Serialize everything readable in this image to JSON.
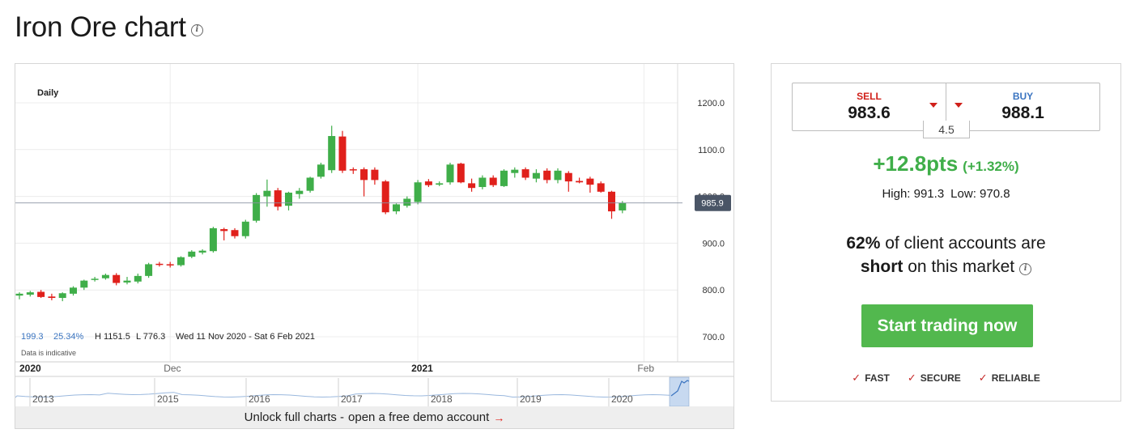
{
  "page": {
    "title": "Iron Ore chart"
  },
  "chart": {
    "period_label": "Daily",
    "current_price_tag": "985.9",
    "stats": {
      "change": "199.3",
      "change_pct": "25.34%",
      "high": "H 1151.5",
      "low": "L 776.3",
      "range": "Wed 11 Nov 2020 - Sat 6 Feb 2021"
    },
    "disclaimer": "Data is indicative",
    "unlock_text": "Unlock full charts - ",
    "unlock_link": "open a free demo account",
    "unlock_arrow": "→",
    "colors": {
      "up": "#3fae49",
      "down": "#e0201b",
      "tag": "#4a5566"
    }
  },
  "chart_data": {
    "type": "candlestick",
    "ylim": [
      700,
      1250
    ],
    "y_ticks": [
      "1200.0",
      "1100.0",
      "1000.0",
      "900.0",
      "800.0",
      "700.0"
    ],
    "y_tick_values": [
      1200,
      1100,
      1000,
      900,
      800,
      700
    ],
    "x_labels": [
      {
        "label": "2020",
        "index": 0
      },
      {
        "label": "Dec",
        "index": 14
      },
      {
        "label": "2021",
        "index": 37
      },
      {
        "label": "Feb",
        "index": 58
      }
    ],
    "navigator_years": [
      "2013",
      "2015",
      "2016",
      "2017",
      "2018",
      "2019",
      "2020"
    ],
    "candles": [
      {
        "o": 788,
        "h": 795,
        "l": 780,
        "c": 792
      },
      {
        "o": 790,
        "h": 798,
        "l": 786,
        "c": 795
      },
      {
        "o": 796,
        "h": 800,
        "l": 783,
        "c": 785
      },
      {
        "o": 786,
        "h": 792,
        "l": 778,
        "c": 783
      },
      {
        "o": 783,
        "h": 795,
        "l": 776,
        "c": 793
      },
      {
        "o": 792,
        "h": 808,
        "l": 788,
        "c": 805
      },
      {
        "o": 805,
        "h": 822,
        "l": 800,
        "c": 820
      },
      {
        "o": 823,
        "h": 828,
        "l": 818,
        "c": 824
      },
      {
        "o": 825,
        "h": 835,
        "l": 822,
        "c": 832
      },
      {
        "o": 832,
        "h": 836,
        "l": 810,
        "c": 815
      },
      {
        "o": 816,
        "h": 828,
        "l": 812,
        "c": 820
      },
      {
        "o": 818,
        "h": 835,
        "l": 814,
        "c": 830
      },
      {
        "o": 830,
        "h": 858,
        "l": 826,
        "c": 855
      },
      {
        "o": 856,
        "h": 860,
        "l": 850,
        "c": 854
      },
      {
        "o": 855,
        "h": 860,
        "l": 848,
        "c": 853
      },
      {
        "o": 853,
        "h": 872,
        "l": 850,
        "c": 870
      },
      {
        "o": 871,
        "h": 885,
        "l": 868,
        "c": 882
      },
      {
        "o": 880,
        "h": 887,
        "l": 876,
        "c": 884
      },
      {
        "o": 883,
        "h": 935,
        "l": 880,
        "c": 932
      },
      {
        "o": 930,
        "h": 933,
        "l": 906,
        "c": 926
      },
      {
        "o": 928,
        "h": 932,
        "l": 910,
        "c": 915
      },
      {
        "o": 915,
        "h": 950,
        "l": 910,
        "c": 946
      },
      {
        "o": 948,
        "h": 1007,
        "l": 944,
        "c": 1003
      },
      {
        "o": 1000,
        "h": 1036,
        "l": 978,
        "c": 1012
      },
      {
        "o": 1013,
        "h": 1018,
        "l": 970,
        "c": 978
      },
      {
        "o": 980,
        "h": 1010,
        "l": 970,
        "c": 1008
      },
      {
        "o": 1005,
        "h": 1018,
        "l": 995,
        "c": 1012
      },
      {
        "o": 1012,
        "h": 1042,
        "l": 1008,
        "c": 1040
      },
      {
        "o": 1042,
        "h": 1072,
        "l": 1038,
        "c": 1068
      },
      {
        "o": 1056,
        "h": 1151,
        "l": 1050,
        "c": 1129
      },
      {
        "o": 1128,
        "h": 1140,
        "l": 1050,
        "c": 1055
      },
      {
        "o": 1058,
        "h": 1062,
        "l": 1048,
        "c": 1057
      },
      {
        "o": 1058,
        "h": 1062,
        "l": 1000,
        "c": 1035
      },
      {
        "o": 1057,
        "h": 1062,
        "l": 1025,
        "c": 1035
      },
      {
        "o": 1032,
        "h": 1035,
        "l": 962,
        "c": 966
      },
      {
        "o": 968,
        "h": 985,
        "l": 962,
        "c": 983
      },
      {
        "o": 980,
        "h": 1000,
        "l": 976,
        "c": 995
      },
      {
        "o": 988,
        "h": 1035,
        "l": 983,
        "c": 1030
      },
      {
        "o": 1032,
        "h": 1037,
        "l": 1020,
        "c": 1024
      },
      {
        "o": 1025,
        "h": 1032,
        "l": 1022,
        "c": 1028
      },
      {
        "o": 1030,
        "h": 1072,
        "l": 1025,
        "c": 1068
      },
      {
        "o": 1070,
        "h": 1072,
        "l": 1028,
        "c": 1030
      },
      {
        "o": 1028,
        "h": 1038,
        "l": 1010,
        "c": 1018
      },
      {
        "o": 1020,
        "h": 1045,
        "l": 1015,
        "c": 1040
      },
      {
        "o": 1040,
        "h": 1045,
        "l": 1020,
        "c": 1024
      },
      {
        "o": 1022,
        "h": 1058,
        "l": 1020,
        "c": 1055
      },
      {
        "o": 1050,
        "h": 1062,
        "l": 1040,
        "c": 1057
      },
      {
        "o": 1058,
        "h": 1062,
        "l": 1035,
        "c": 1040
      },
      {
        "o": 1038,
        "h": 1058,
        "l": 1030,
        "c": 1050
      },
      {
        "o": 1055,
        "h": 1060,
        "l": 1028,
        "c": 1035
      },
      {
        "o": 1035,
        "h": 1060,
        "l": 1028,
        "c": 1055
      },
      {
        "o": 1050,
        "h": 1054,
        "l": 1010,
        "c": 1032
      },
      {
        "o": 1033,
        "h": 1040,
        "l": 1028,
        "c": 1030
      },
      {
        "o": 1038,
        "h": 1042,
        "l": 1008,
        "c": 1025
      },
      {
        "o": 1028,
        "h": 1032,
        "l": 1008,
        "c": 1010
      },
      {
        "o": 1010,
        "h": 1012,
        "l": 952,
        "c": 968
      },
      {
        "o": 970,
        "h": 990,
        "l": 964,
        "c": 986
      }
    ]
  },
  "deal": {
    "sell_label": "SELL",
    "sell_price": "983.6",
    "buy_label": "BUY",
    "buy_price": "988.1",
    "spread": "4.5",
    "change_pts": "+12.8pts",
    "change_pct": "(+1.32%)",
    "high": "High: 991.3",
    "low": "Low: 970.8",
    "sentiment_pct": "62%",
    "sentiment_mid": " of client accounts are",
    "sentiment_dir": "short",
    "sentiment_tail": " on this market",
    "cta_label": "Start trading now",
    "badges": [
      "FAST",
      "SECURE",
      "RELIABLE"
    ],
    "check_glyph": "✓"
  }
}
